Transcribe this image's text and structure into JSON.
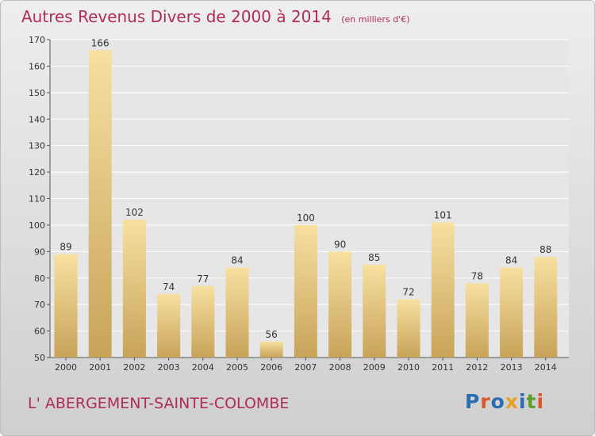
{
  "title": "Autres Revenus Divers de 2000 à 2014",
  "unit_note": "(en milliers d'€)",
  "commune": "L' ABERGEMENT-SAINTE-COLOMBE",
  "logo_text": "Proxiti",
  "colors": {
    "title": "#b02c5b",
    "bar_light": "#f7e0a0",
    "bar_dark": "#c8a35a",
    "logo": [
      "#2c6cb0",
      "#d9552a",
      "#2c6cb0",
      "#e8a020",
      "#2c6cb0",
      "#5aa02c",
      "#d9552a"
    ]
  },
  "chart_data": {
    "type": "bar",
    "categories": [
      "2000",
      "2001",
      "2002",
      "2003",
      "2004",
      "2005",
      "2006",
      "2007",
      "2008",
      "2009",
      "2010",
      "2011",
      "2012",
      "2013",
      "2014"
    ],
    "values": [
      89,
      166,
      102,
      74,
      77,
      84,
      56,
      100,
      90,
      85,
      72,
      101,
      78,
      84,
      88
    ],
    "ylim": [
      50,
      170
    ],
    "yticks": [
      50,
      60,
      70,
      80,
      90,
      100,
      110,
      120,
      130,
      140,
      150,
      160,
      170
    ],
    "grid": true,
    "xlabel": "",
    "ylabel": ""
  }
}
